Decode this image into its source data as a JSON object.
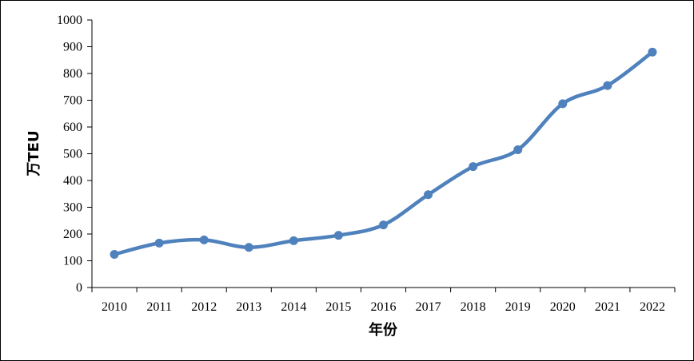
{
  "chart_data": {
    "type": "line",
    "title": "",
    "xlabel": "年份",
    "ylabel": "万TEU",
    "categories": [
      "2010",
      "2011",
      "2012",
      "2013",
      "2014",
      "2015",
      "2016",
      "2017",
      "2018",
      "2019",
      "2020",
      "2021",
      "2022"
    ],
    "series": [
      {
        "values": [
          124,
          166,
          178,
          150,
          175,
          195,
          234,
          347,
          452,
          515,
          687,
          755,
          880
        ]
      }
    ],
    "ylim": [
      0,
      1000
    ],
    "yticks": [
      0,
      100,
      200,
      300,
      400,
      500,
      600,
      700,
      800,
      900,
      1000
    ],
    "grid": false,
    "legend": "none",
    "line_color": "#4f81bd",
    "smooth": true
  }
}
